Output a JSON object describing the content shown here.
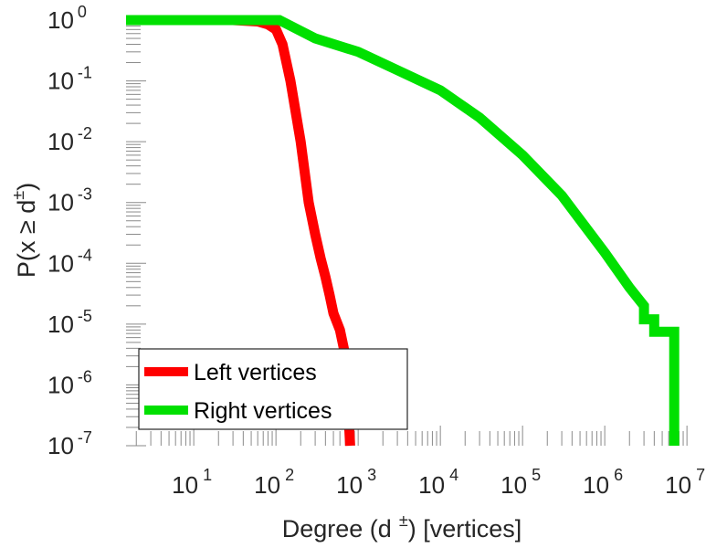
{
  "chart_data": {
    "type": "line",
    "x_scale": "log",
    "y_scale": "log",
    "xlim": [
      1.5,
      15000000
    ],
    "ylim": [
      1e-07,
      1
    ],
    "xlabel_main": "Degree (d",
    "xlabel_sup": "±",
    "xlabel_tail": ") [vertices]",
    "ylabel_main": "P(x ≥ d",
    "ylabel_sup": "±",
    "ylabel_tail": ")",
    "x_ticks": [
      {
        "base": "10",
        "exp": "1",
        "value": 10
      },
      {
        "base": "10",
        "exp": "2",
        "value": 100
      },
      {
        "base": "10",
        "exp": "3",
        "value": 1000
      },
      {
        "base": "10",
        "exp": "4",
        "value": 10000
      },
      {
        "base": "10",
        "exp": "5",
        "value": 100000
      },
      {
        "base": "10",
        "exp": "6",
        "value": 1000000
      },
      {
        "base": "10",
        "exp": "7",
        "value": 10000000
      }
    ],
    "y_ticks": [
      {
        "base": "10",
        "exp": "0",
        "value": 1
      },
      {
        "base": "10",
        "exp": "-1",
        "value": 0.1
      },
      {
        "base": "10",
        "exp": "-2",
        "value": 0.01
      },
      {
        "base": "10",
        "exp": "-3",
        "value": 0.001
      },
      {
        "base": "10",
        "exp": "-4",
        "value": 0.0001
      },
      {
        "base": "10",
        "exp": "-5",
        "value": 1e-05
      },
      {
        "base": "10",
        "exp": "-6",
        "value": 1e-06
      },
      {
        "base": "10",
        "exp": "-7",
        "value": 1e-07
      }
    ],
    "series": [
      {
        "name": "Left vertices",
        "color": "#ff0000",
        "x": [
          1.5,
          30,
          60,
          80,
          100,
          120,
          150,
          200,
          250,
          300,
          350,
          400,
          450,
          500,
          600,
          700,
          800
        ],
        "y": [
          1,
          1,
          0.95,
          0.85,
          0.7,
          0.4,
          0.1,
          0.01,
          0.001,
          0.0003,
          0.00012,
          6e-05,
          3e-05,
          1.5e-05,
          8e-06,
          3e-06,
          1e-07
        ]
      },
      {
        "name": "Right vertices",
        "color": "#00e000",
        "x": [
          1.5,
          110,
          300,
          1000,
          3000,
          10000,
          30000,
          100000,
          300000,
          1000000,
          2000000,
          3000000,
          3000000,
          4000000,
          4000000,
          6000000,
          6000000,
          7000000,
          7000000
        ],
        "y": [
          1,
          1,
          0.5,
          0.3,
          0.15,
          0.07,
          0.025,
          0.006,
          0.0013,
          0.00015,
          4e-05,
          2e-05,
          1.2e-05,
          1.2e-05,
          7.5e-06,
          7.5e-06,
          7.5e-06,
          7.5e-06,
          1e-07
        ]
      }
    ],
    "legend": {
      "placement": "bottom-left",
      "entries": [
        "Left vertices",
        "Right vertices"
      ]
    },
    "grid": false
  }
}
